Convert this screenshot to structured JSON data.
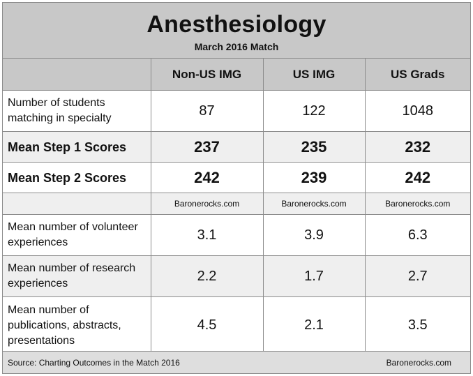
{
  "title": "Anesthesiology",
  "subtitle": "March 2016 Match",
  "columns": [
    "Non-US IMG",
    "US IMG",
    "US Grads"
  ],
  "rows": [
    {
      "label": "Number of students matching in specialty",
      "values": [
        "87",
        "122",
        "1048"
      ]
    },
    {
      "label": "Mean Step 1 Scores",
      "values": [
        "237",
        "235",
        "232"
      ]
    },
    {
      "label": "Mean Step 2 Scores",
      "values": [
        "242",
        "239",
        "242"
      ]
    },
    {
      "label": "",
      "values": [
        "Baronerocks.com",
        "Baronerocks.com",
        "Baronerocks.com"
      ]
    },
    {
      "label": "Mean number of volunteer experiences",
      "values": [
        "3.1",
        "3.9",
        "6.3"
      ]
    },
    {
      "label": "Mean number of research experiences",
      "values": [
        "2.2",
        "1.7",
        "2.7"
      ]
    },
    {
      "label": "Mean number of publications, abstracts, presentations",
      "values": [
        "4.5",
        "2.1",
        "3.5"
      ]
    }
  ],
  "footer": {
    "source": "Source: Charting Outcomes in the Match 2016",
    "watermark": "Baronerocks.com"
  }
}
